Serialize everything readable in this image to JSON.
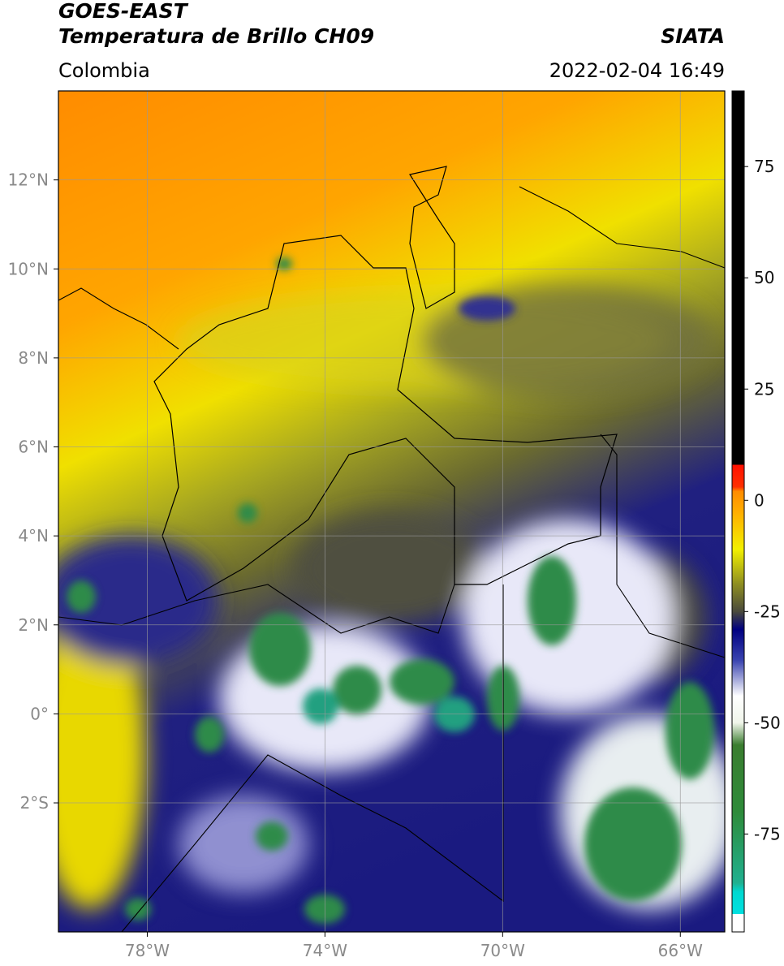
{
  "chart_data": {
    "type": "map",
    "title": "GOES-EAST",
    "subtitle": "Temperatura de Brillo CH09",
    "region": "Colombia",
    "source": "SIATA",
    "datetime": "2022-02-04 16:49",
    "xlim": [
      -80,
      -65
    ],
    "ylim": [
      -4.9,
      14
    ],
    "xticks": [
      {
        "value": -78,
        "label": "78°W"
      },
      {
        "value": -74,
        "label": "74°W"
      },
      {
        "value": -70,
        "label": "70°W"
      },
      {
        "value": -66,
        "label": "66°W"
      }
    ],
    "yticks": [
      {
        "value": -2,
        "label": "2°S"
      },
      {
        "value": 0,
        "label": "0°"
      },
      {
        "value": 2,
        "label": "2°N"
      },
      {
        "value": 4,
        "label": "4°N"
      },
      {
        "value": 6,
        "label": "6°N"
      },
      {
        "value": 8,
        "label": "8°N"
      },
      {
        "value": 10,
        "label": "10°N"
      },
      {
        "value": 12,
        "label": "12°N"
      }
    ],
    "grid": true,
    "colorbar": {
      "lim": [
        -97,
        92
      ],
      "ticks": [
        -75,
        -50,
        -25,
        0,
        25,
        50,
        75
      ],
      "colormap": [
        {
          "value": -97,
          "color": "#ffffff"
        },
        {
          "value": -93,
          "color": "#ffffff"
        },
        {
          "value": -93,
          "color": "#00e0e0"
        },
        {
          "value": -88,
          "color": "#00d8d0"
        },
        {
          "value": -86,
          "color": "#20b090"
        },
        {
          "value": -70,
          "color": "#2e8b3a"
        },
        {
          "value": -55,
          "color": "#3a7d2f"
        },
        {
          "value": -50,
          "color": "#f0f5ea"
        },
        {
          "value": -44,
          "color": "#ffffff"
        },
        {
          "value": -36,
          "color": "#3a44b0"
        },
        {
          "value": -29,
          "color": "#000080"
        },
        {
          "value": -25,
          "color": "#4a4a3c"
        },
        {
          "value": -19,
          "color": "#8c8c22"
        },
        {
          "value": -11,
          "color": "#f2f000"
        },
        {
          "value": -3,
          "color": "#ffb000"
        },
        {
          "value": 2,
          "color": "#ff8c00"
        },
        {
          "value": 3,
          "color": "#ff3000"
        },
        {
          "value": 8,
          "color": "#ff1000"
        },
        {
          "value": 8,
          "color": "#000000"
        },
        {
          "value": 92,
          "color": "#000000"
        }
      ]
    }
  }
}
